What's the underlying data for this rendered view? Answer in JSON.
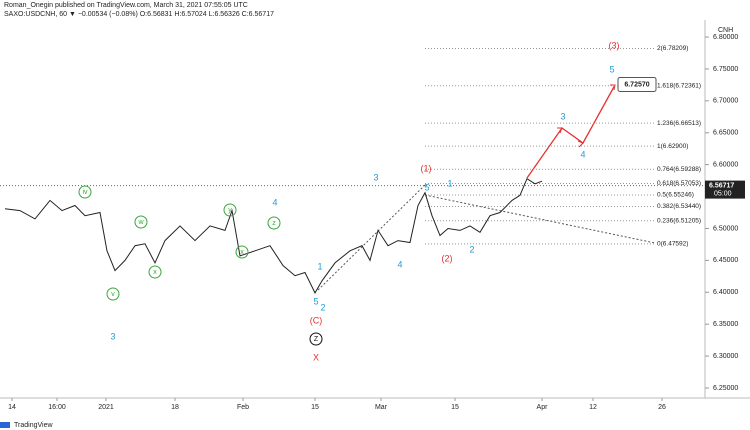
{
  "header": {
    "line1": "Roman_Onegin published on TradingView.com, March 31, 2021 07:55:05 UTC",
    "line2": "SAXO:USDCNH, 60 ▼ −0.00534 (−0.08%) O:6.56831 H:6.57024 L:6.56326 C:6.56717",
    "currency": "CNH",
    "footer": "TradingView"
  },
  "chart_data": {
    "type": "line",
    "color": "#222222",
    "x": [
      -7,
      8,
      23,
      38,
      50,
      63,
      73,
      88,
      95,
      103,
      113,
      123,
      133,
      143,
      153,
      168,
      183,
      198,
      213,
      220,
      228,
      243,
      258,
      271,
      283,
      293,
      303,
      310,
      323,
      338,
      350,
      358,
      366,
      376,
      386,
      398,
      406,
      413,
      420,
      428,
      436,
      448,
      458,
      468,
      478,
      488,
      500,
      508,
      515,
      523,
      530
    ],
    "values": [
      6.531,
      6.528,
      6.515,
      6.544,
      6.528,
      6.536,
      6.52,
      6.525,
      6.465,
      6.434,
      6.45,
      6.473,
      6.476,
      6.446,
      6.481,
      6.504,
      6.481,
      6.504,
      6.497,
      6.528,
      6.457,
      6.465,
      6.473,
      6.442,
      6.426,
      6.431,
      6.399,
      6.418,
      6.446,
      6.465,
      6.473,
      6.45,
      6.497,
      6.473,
      6.481,
      6.478,
      6.536,
      6.556,
      6.52,
      6.489,
      6.5,
      6.497,
      6.504,
      6.494,
      6.52,
      6.525,
      6.544,
      6.552,
      6.578,
      6.57,
      6.574
    ],
    "xlim": [
      -12,
      693
    ],
    "xticks": [
      {
        "value": 0,
        "label": "14"
      },
      {
        "value": 45,
        "label": "16:00"
      },
      {
        "value": 94,
        "label": "2021"
      },
      {
        "value": 163,
        "label": "18"
      },
      {
        "value": 231,
        "label": "Feb"
      },
      {
        "value": 303,
        "label": "15"
      },
      {
        "value": 369,
        "label": "Mar"
      },
      {
        "value": 443,
        "label": "15"
      },
      {
        "value": 530,
        "label": "Apr"
      },
      {
        "value": 581,
        "label": "12"
      },
      {
        "value": 650,
        "label": "26"
      }
    ],
    "ylim": [
      6.2343,
      6.8267
    ],
    "yticks": [
      {
        "value": 6.25,
        "label": "6.25000"
      },
      {
        "value": 6.3,
        "label": "6.30000"
      },
      {
        "value": 6.35,
        "label": "6.35000"
      },
      {
        "value": 6.4,
        "label": "6.40000"
      },
      {
        "value": 6.45,
        "label": "6.45000"
      },
      {
        "value": 6.5,
        "label": "6.50000"
      },
      {
        "value": 6.55,
        "label": "6.55000"
      },
      {
        "value": 6.6,
        "label": "6.60000"
      },
      {
        "value": 6.65,
        "label": "6.65000"
      },
      {
        "value": 6.7,
        "label": "6.70000"
      },
      {
        "value": 6.75,
        "label": "6.75000"
      },
      {
        "value": 6.8,
        "label": "6.80000"
      }
    ],
    "fib_levels": [
      {
        "value": 6.78209,
        "label": "2(6.78209)"
      },
      {
        "value": 6.72361,
        "label": "1.618(6.72361)"
      },
      {
        "value": 6.66513,
        "label": "1.236(6.66513)"
      },
      {
        "value": 6.629,
        "label": "1(6.62900)"
      },
      {
        "value": 6.59288,
        "label": "0.764(6.59288)"
      },
      {
        "value": 6.57053,
        "label": "0.618(6.57053)"
      },
      {
        "value": 6.55246,
        "label": "0.5(6.55246)"
      },
      {
        "value": 6.5344,
        "label": "0.382(6.53440)"
      },
      {
        "value": 6.51205,
        "label": "0.236(6.51205)"
      },
      {
        "value": 6.47592,
        "label": "0(6.47592)"
      }
    ],
    "last_price": {
      "value": 6.56717,
      "label": "6.56717",
      "countdown": "05:00"
    },
    "target": {
      "value": 6.7257,
      "label": "6.72570"
    },
    "annotations": [
      {
        "text": "3",
        "color": "#1e9bd7"
      },
      {
        "text": "4",
        "color": "#1e9bd7"
      },
      {
        "text": "5",
        "color": "#1e9bd7"
      },
      {
        "text": "2",
        "color": "#1e9bd7"
      },
      {
        "text": "1",
        "color": "#1e9bd7"
      },
      {
        "text": "3",
        "color": "#1e9bd7"
      },
      {
        "text": "4",
        "color": "#1e9bd7"
      },
      {
        "text": "5",
        "color": "#1e9bd7"
      },
      {
        "text": "1",
        "color": "#1e9bd7"
      },
      {
        "text": "2",
        "color": "#1e9bd7"
      },
      {
        "text": "3",
        "color": "#1e9bd7"
      },
      {
        "text": "4",
        "color": "#1e9bd7"
      },
      {
        "text": "5",
        "color": "#1e9bd7"
      },
      {
        "text": "(1)",
        "color": "#e03030"
      },
      {
        "text": "(2)",
        "color": "#e03030"
      },
      {
        "text": "(3)",
        "color": "#e03030"
      },
      {
        "text": "(C)",
        "color": "#e03030"
      },
      {
        "text": "X",
        "color": "#e03030"
      },
      {
        "text": "iv",
        "color": "#3aa63a",
        "circle": true
      },
      {
        "text": "w",
        "color": "#3aa63a",
        "circle": true
      },
      {
        "text": "x",
        "color": "#3aa63a",
        "circle": true
      },
      {
        "text": "v",
        "color": "#3aa63a",
        "circle": true
      },
      {
        "text": "y",
        "color": "#3aa63a",
        "circle": true
      },
      {
        "text": "z",
        "color": "#3aa63a",
        "circle": true
      },
      {
        "text": "x",
        "color": "#3aa63a",
        "circle": true
      },
      {
        "text": "Z",
        "color": "#111111",
        "circle": true
      }
    ]
  }
}
